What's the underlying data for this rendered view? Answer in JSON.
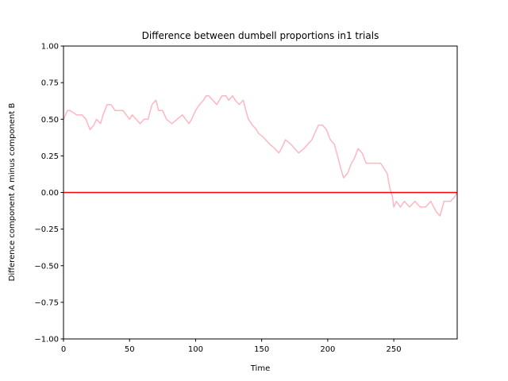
{
  "chart_data": {
    "type": "line",
    "title": "Difference between dumbell proportions in1 trials",
    "xlabel": "Time",
    "ylabel": "Difference component A minus component B",
    "xlim": [
      0,
      298
    ],
    "ylim": [
      -1.0,
      1.0
    ],
    "xticks": [
      0,
      50,
      100,
      150,
      200,
      250
    ],
    "xtick_labels": [
      "0",
      "50",
      "100",
      "150",
      "200",
      "250"
    ],
    "yticks": [
      -1.0,
      -0.75,
      -0.5,
      -0.25,
      0.0,
      0.25,
      0.5,
      0.75,
      1.0
    ],
    "ytick_labels": [
      "−1.00",
      "−0.75",
      "−0.50",
      "−0.25",
      "0.00",
      "0.25",
      "0.50",
      "0.75",
      "1.00"
    ],
    "grid": false,
    "reference_line": {
      "y": 0.0,
      "color": "#ff0000"
    },
    "series": [
      {
        "color": "#ffb6c1",
        "x": [
          0,
          3,
          5,
          10,
          14,
          17,
          20,
          23,
          25,
          28,
          30,
          33,
          36,
          39,
          42,
          45,
          50,
          52,
          55,
          58,
          61,
          64,
          67,
          70,
          72,
          75,
          78,
          82,
          86,
          90,
          95,
          97,
          100,
          103,
          106,
          108,
          110,
          113,
          116,
          120,
          123,
          125,
          128,
          130,
          133,
          136,
          138,
          140,
          143,
          146,
          148,
          151,
          153,
          156,
          160,
          163,
          165,
          168,
          172,
          175,
          178,
          182,
          185,
          188,
          190,
          193,
          196,
          199,
          202,
          205,
          208,
          210,
          212,
          215,
          218,
          220,
          223,
          226,
          229,
          232,
          235,
          240,
          245,
          247,
          249,
          250,
          252,
          255,
          258,
          262,
          266,
          270,
          274,
          278,
          282,
          285,
          288,
          290,
          293,
          296,
          298
        ],
        "y": [
          0.5,
          0.56,
          0.56,
          0.53,
          0.53,
          0.5,
          0.43,
          0.46,
          0.5,
          0.47,
          0.53,
          0.6,
          0.6,
          0.56,
          0.56,
          0.56,
          0.5,
          0.53,
          0.5,
          0.47,
          0.5,
          0.5,
          0.6,
          0.63,
          0.56,
          0.56,
          0.5,
          0.47,
          0.5,
          0.53,
          0.47,
          0.5,
          0.56,
          0.6,
          0.63,
          0.66,
          0.66,
          0.63,
          0.6,
          0.66,
          0.66,
          0.63,
          0.66,
          0.63,
          0.6,
          0.63,
          0.56,
          0.5,
          0.46,
          0.43,
          0.4,
          0.38,
          0.36,
          0.33,
          0.3,
          0.27,
          0.3,
          0.36,
          0.33,
          0.3,
          0.27,
          0.3,
          0.33,
          0.36,
          0.4,
          0.46,
          0.46,
          0.43,
          0.36,
          0.33,
          0.23,
          0.16,
          0.1,
          0.13,
          0.2,
          0.23,
          0.3,
          0.27,
          0.2,
          0.2,
          0.2,
          0.2,
          0.13,
          0.03,
          -0.03,
          -0.1,
          -0.06,
          -0.1,
          -0.06,
          -0.1,
          -0.06,
          -0.1,
          -0.1,
          -0.06,
          -0.13,
          -0.16,
          -0.06,
          -0.06,
          -0.06,
          -0.03,
          0.0
        ]
      }
    ]
  }
}
